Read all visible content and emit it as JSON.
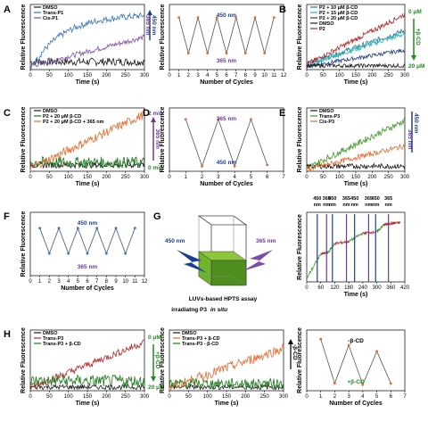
{
  "colors": {
    "black": "#1a1a1a",
    "blue": "#3a73b8",
    "purple": "#7b4ea8",
    "red": "#b3262a",
    "cyan": "#2ab5c0",
    "teal": "#2a7a88",
    "navy": "#1f3f80",
    "orange": "#e8692a",
    "green": "#3f9a2a",
    "darkgreen": "#1a7a1a",
    "navylabel": "#1b3f93",
    "purplelabel": "#6a3a98",
    "greenlabel": "#1f8a1f"
  },
  "chart_data": [
    {
      "panel": "A",
      "type": "line",
      "xlabel": "Time (s)",
      "ylabel": "Relative Fluorescence",
      "xlim": [
        0,
        300
      ],
      "xticks": [
        "0",
        "50",
        "100",
        "150",
        "200",
        "250",
        "300"
      ],
      "series": [
        {
          "name": "DMSO",
          "color": "black",
          "shape": "flat",
          "level": 0.12,
          "noise": 0.06
        },
        {
          "name": "Trans-P1",
          "color": "blue",
          "shape": "saturate",
          "level": 0.85,
          "rate": 0.012,
          "noise": 0.05
        },
        {
          "name": "Cis-P1",
          "color": "purple",
          "shape": "linear",
          "start": 0.05,
          "end": 0.5,
          "noise": 0.04
        }
      ],
      "annotation": {
        "text": "365 nm",
        "sub": "450 nm"
      }
    },
    {
      "panel": "A2",
      "type": "line",
      "xlabel": "Number of Cycles",
      "ylabel": "Relative Fluorescence",
      "xlim": [
        0,
        12
      ],
      "xticks": [
        "0",
        "1",
        "2",
        "3",
        "4",
        "5",
        "6",
        "7",
        "8",
        "9",
        "10",
        "11",
        "12"
      ],
      "x": [
        1,
        2,
        3,
        4,
        5,
        6,
        7,
        8,
        9,
        10,
        11
      ],
      "values": [
        0.8,
        0.25,
        0.8,
        0.25,
        0.8,
        0.25,
        0.8,
        0.25,
        0.8,
        0.25,
        0.8
      ],
      "labels": {
        "top": "450 nm",
        "bottom": "365 nm"
      }
    },
    {
      "panel": "B",
      "type": "line",
      "xlabel": "Time (s)",
      "ylabel": "Relative Fluorescence",
      "xlim": [
        0,
        300
      ],
      "xticks": [
        "0",
        "50",
        "100",
        "150",
        "200",
        "250",
        "300"
      ],
      "series": [
        {
          "name": "P2 + 10 μM β-CD",
          "color": "teal",
          "shape": "linear",
          "start": 0.08,
          "end": 0.6,
          "noise": 0.04
        },
        {
          "name": "P2 + 15 μM β-CD",
          "color": "cyan",
          "shape": "linear",
          "start": 0.08,
          "end": 0.55,
          "noise": 0.04
        },
        {
          "name": "P2 + 20 μM β-CD",
          "color": "navy",
          "shape": "linear",
          "start": 0.05,
          "end": 0.3,
          "noise": 0.03
        },
        {
          "name": "DMSO",
          "color": "black",
          "shape": "flat",
          "level": 0.06,
          "noise": 0.03
        },
        {
          "name": "P2",
          "color": "red",
          "shape": "linear",
          "start": 0.08,
          "end": 0.85,
          "noise": 0.04
        }
      ],
      "annotation": {
        "top": "0 μM",
        "mid": "+β-CD",
        "bottom": "20 μM"
      }
    },
    {
      "panel": "C",
      "type": "line",
      "xlabel": "Time (s)",
      "ylabel": "Relative Fluorescence",
      "xlim": [
        0,
        300
      ],
      "xticks": [
        "0",
        "50",
        "100",
        "150",
        "200",
        "250",
        "300"
      ],
      "series": [
        {
          "name": "DMSO",
          "color": "black",
          "shape": "flat",
          "level": 0.1,
          "noise": 0.05
        },
        {
          "name": "P2 + 20 μM β-CD",
          "color": "darkgreen",
          "shape": "flat",
          "level": 0.14,
          "noise": 0.09
        },
        {
          "name": "P2 + 20 μM β-CD + 365 nm",
          "color": "orange",
          "shape": "linear",
          "start": 0.05,
          "end": 0.9,
          "noise": 0.07
        }
      ],
      "annotation": {
        "top": "2 min",
        "mid": "365 nm",
        "bottom": "0 min"
      }
    },
    {
      "panel": "D",
      "type": "line",
      "xlabel": "Number of Cycles",
      "ylabel": "Relative Fluorescence",
      "xlim": [
        0,
        7
      ],
      "xticks": [
        "0",
        "1",
        "2",
        "3",
        "4",
        "5",
        "6",
        "7"
      ],
      "x": [
        1,
        2,
        3,
        4,
        5,
        6
      ],
      "values": [
        0.82,
        0.08,
        0.82,
        0.08,
        0.82,
        0.1
      ],
      "labels": {
        "top": "365 nm",
        "bottom": "450 nm"
      }
    },
    {
      "panel": "E",
      "type": "line",
      "xlabel": "Time (s)",
      "ylabel": "Relative Fluorescence",
      "xlim": [
        0,
        300
      ],
      "xticks": [
        "0",
        "50",
        "100",
        "150",
        "200",
        "250",
        "300"
      ],
      "series": [
        {
          "name": "DMSO",
          "color": "black",
          "shape": "flat",
          "level": 0.08,
          "noise": 0.04
        },
        {
          "name": "Trans-P3",
          "color": "green",
          "shape": "linear",
          "start": 0.05,
          "end": 0.8,
          "noise": 0.05
        },
        {
          "name": "Cis-P3",
          "color": "orange",
          "shape": "linear",
          "start": 0.03,
          "end": 0.4,
          "noise": 0.04
        }
      ],
      "annotation": {
        "top": "450 nm",
        "bottom": "365 nm"
      }
    },
    {
      "panel": "F",
      "type": "line",
      "xlabel": "Number of Cycles",
      "ylabel": "Relative Fluorescence",
      "xlim": [
        0,
        12
      ],
      "xticks": [
        "0",
        "1",
        "2",
        "3",
        "4",
        "5",
        "6",
        "7",
        "8",
        "9",
        "10",
        "11",
        "12"
      ],
      "x": [
        1,
        2,
        3,
        4,
        5,
        6,
        7,
        8,
        9,
        10,
        11
      ],
      "values": [
        0.75,
        0.35,
        0.75,
        0.35,
        0.75,
        0.35,
        0.75,
        0.35,
        0.75,
        0.35,
        0.75
      ],
      "labels": {
        "top": "450 nm",
        "bottom": "365 nm"
      }
    },
    {
      "panel": "G2",
      "type": "line",
      "xlabel": "Time (s)",
      "ylabel": "Relative Fluorescence",
      "xlim": [
        0,
        420
      ],
      "xticks": [
        "0",
        "60",
        "120",
        "180",
        "240",
        "300",
        "360",
        "420"
      ],
      "segments": [
        {
          "from": 0,
          "to": 60,
          "color": "green",
          "start": 0.05,
          "end": 0.4
        },
        {
          "from": 60,
          "to": 90,
          "color": "red",
          "start": 0.4,
          "end": 0.42
        },
        {
          "from": 90,
          "to": 120,
          "color": "green",
          "start": 0.42,
          "end": 0.55
        },
        {
          "from": 120,
          "to": 180,
          "color": "red",
          "start": 0.55,
          "end": 0.58
        },
        {
          "from": 180,
          "to": 240,
          "color": "green",
          "start": 0.58,
          "end": 0.7
        },
        {
          "from": 240,
          "to": 300,
          "color": "red",
          "start": 0.7,
          "end": 0.72
        },
        {
          "from": 300,
          "to": 330,
          "color": "green",
          "start": 0.72,
          "end": 0.82
        },
        {
          "from": 330,
          "to": 360,
          "color": "red",
          "start": 0.82,
          "end": 0.84
        },
        {
          "from": 360,
          "to": 400,
          "color": "red",
          "start": 0.84,
          "end": 0.85
        }
      ],
      "vlines": [
        {
          "x": 45,
          "label": "450\nnm",
          "color": "navylabel"
        },
        {
          "x": 85,
          "label": "365\nnm",
          "color": "purplelabel"
        },
        {
          "x": 110,
          "label": "450\nnm",
          "color": "navylabel"
        },
        {
          "x": 170,
          "label": "365\nnm",
          "color": "purplelabel"
        },
        {
          "x": 205,
          "label": "450\nnm",
          "color": "navylabel"
        },
        {
          "x": 265,
          "label": "365\nnm",
          "color": "purplelabel"
        },
        {
          "x": 295,
          "label": "450\nnm",
          "color": "navylabel"
        },
        {
          "x": 350,
          "label": "365\nnm",
          "color": "purplelabel"
        }
      ]
    },
    {
      "panel": "H",
      "type": "line",
      "xlabel": "Time (s)",
      "ylabel": "Relative Fluorescence",
      "xlim": [
        0,
        300
      ],
      "xticks": [
        "0",
        "50",
        "100",
        "150",
        "200",
        "250",
        "300"
      ],
      "series": [
        {
          "name": "DMSO",
          "color": "black",
          "shape": "flat",
          "level": 0.06,
          "noise": 0.04
        },
        {
          "name": "Trans-P3",
          "color": "red",
          "shape": "linear",
          "start": 0.05,
          "end": 0.8,
          "noise": 0.06
        },
        {
          "name": "Trans-P3 + β-CD",
          "color": "darkgreen",
          "shape": "flat",
          "level": 0.16,
          "noise": 0.1
        }
      ],
      "annotation": {
        "top": "0 μM",
        "mid": "+β-CD",
        "bottom": "20 μM"
      }
    },
    {
      "panel": "H2",
      "type": "line",
      "xlabel": "Time (s)",
      "ylabel": "Relative Fluorescence",
      "xlim": [
        0,
        300
      ],
      "xticks": [
        "0",
        "50",
        "100",
        "150",
        "200",
        "250",
        "300"
      ],
      "series": [
        {
          "name": "DMSO",
          "color": "black",
          "shape": "flat",
          "level": 0.06,
          "noise": 0.04
        },
        {
          "name": "Trans-P3 + β-CD",
          "color": "orange",
          "shape": "linear",
          "start": 0.05,
          "end": 0.7,
          "noise": 0.08
        },
        {
          "name": "Trans-P3 - β-CD",
          "color": "darkgreen",
          "shape": "flat",
          "level": 0.12,
          "noise": 0.08
        }
      ],
      "annotation": {
        "mid": "-β-CD"
      }
    },
    {
      "panel": "H3",
      "type": "line",
      "xlabel": "Number of Cycles",
      "ylabel": "Relative Fluorescence",
      "xlim": [
        0,
        7
      ],
      "xticks": [
        "0",
        "1",
        "2",
        "3",
        "4",
        "5",
        "6",
        "7"
      ],
      "x": [
        1,
        2,
        3,
        4,
        5,
        6
      ],
      "values": [
        0.85,
        0.12,
        0.75,
        0.1,
        0.65,
        0.12
      ],
      "labels": {
        "top": "-β-CD",
        "bottom": "+β-CD"
      }
    }
  ],
  "diagram": {
    "panel": "G",
    "caption1": "LUVs-based HPTS assay",
    "caption2a": "irradiatng P3",
    "caption2b": "in situ",
    "left_label": "450 nm",
    "right_label": "365 nm"
  }
}
